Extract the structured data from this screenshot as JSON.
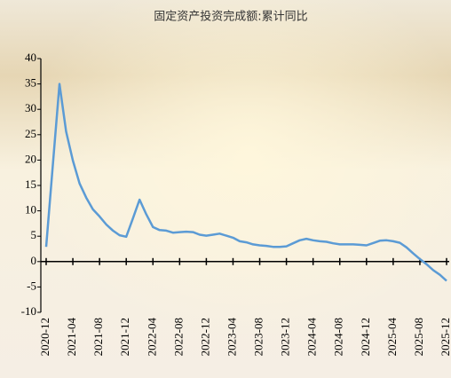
{
  "chart_data": {
    "type": "line",
    "title": "固定资产投资完成额:累计同比",
    "categories": [
      "2020-12",
      null,
      null,
      null,
      "2021-04",
      null,
      null,
      null,
      "2021-08",
      null,
      null,
      null,
      "2021-12",
      null,
      null,
      null,
      "2022-04",
      null,
      null,
      null,
      "2022-08",
      null,
      null,
      null,
      "2022-12",
      null,
      null,
      null,
      "2023-04",
      null,
      null,
      null,
      "2023-08",
      null,
      null,
      null,
      "2023-12",
      null,
      null,
      null,
      "2024-04",
      null,
      null,
      null,
      "2024-08",
      null,
      null,
      null,
      "2024-12",
      null,
      null,
      null,
      "2025-04",
      null,
      null,
      null,
      "2025-08",
      null,
      null,
      null,
      "2025-12"
    ],
    "series": [
      {
        "name": "固定资产投资完成额:累计同比",
        "color": "#5b9bd5",
        "values": [
          2.9,
          19,
          35.0,
          25.6,
          19.9,
          15.4,
          12.6,
          10.3,
          8.9,
          7.3,
          6.1,
          5.2,
          4.9,
          8.5,
          12.2,
          9.3,
          6.8,
          6.2,
          6.1,
          5.7,
          5.8,
          5.9,
          5.8,
          5.3,
          5.1,
          5.3,
          5.5,
          5.1,
          4.7,
          4.0,
          3.8,
          3.4,
          3.2,
          3.1,
          2.9,
          2.9,
          3.0,
          3.6,
          4.2,
          4.5,
          4.2,
          4.0,
          3.9,
          3.6,
          3.4,
          3.4,
          3.4,
          3.3,
          3.2,
          3.65,
          4.1,
          4.2,
          4.0,
          3.7,
          2.8,
          1.6,
          0.5,
          -0.5,
          -1.7,
          -2.6,
          -3.8
        ]
      }
    ],
    "ylim": [
      -10,
      40
    ],
    "yticks": [
      -10,
      -5,
      0,
      5,
      10,
      15,
      20,
      25,
      30,
      35,
      40
    ]
  }
}
